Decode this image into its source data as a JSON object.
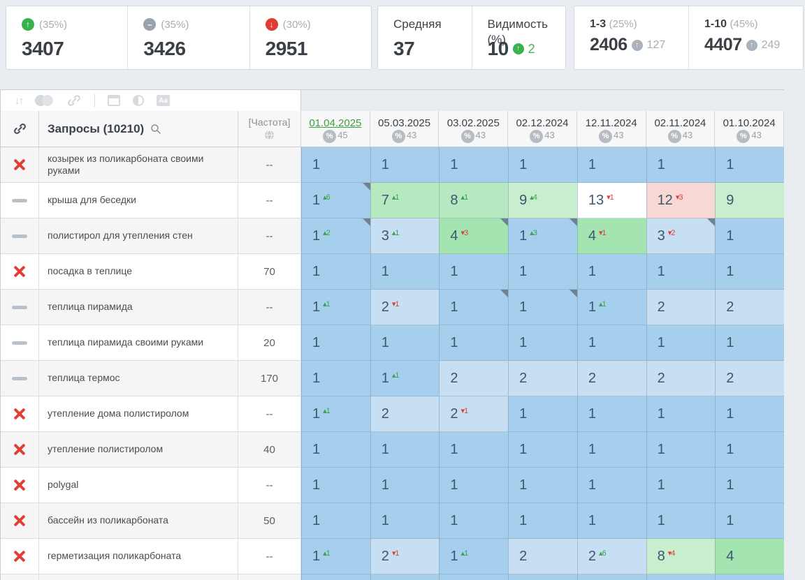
{
  "stats": {
    "summary_cards": [
      {
        "icon": "up-circle",
        "icon_color": "#37b24d",
        "label": "(35%)",
        "value": "3407"
      },
      {
        "icon": "minus-circle",
        "icon_color": "#9aa3ad",
        "label": "(35%)",
        "value": "3426"
      },
      {
        "icon": "down-circle",
        "icon_color": "#e03c31",
        "label": "(30%)",
        "value": "2951"
      }
    ],
    "average": {
      "label": "Средняя",
      "value": "37"
    },
    "visibility": {
      "label": "Видимость (%)",
      "value": "10",
      "delta": "2"
    },
    "range_cards": [
      {
        "label": "1-3",
        "pct": "(25%)",
        "value": "2406",
        "delta": "127"
      },
      {
        "label": "1-10",
        "pct": "(45%)",
        "value": "4407",
        "delta": "249"
      }
    ]
  },
  "toolbar": {
    "icons": [
      "sort-icon",
      "circles-icon",
      "link-icon",
      "calendar-icon",
      "contrast-icon",
      "font-aa-icon"
    ]
  },
  "table": {
    "queries_header": "Запросы (10210)",
    "frequency_header": "[Частота]",
    "date_columns": [
      {
        "date": "01.04.2025",
        "visibility": "45",
        "selected": true
      },
      {
        "date": "05.03.2025",
        "visibility": "43",
        "selected": false
      },
      {
        "date": "03.02.2025",
        "visibility": "43",
        "selected": false
      },
      {
        "date": "02.12.2024",
        "visibility": "43",
        "selected": false
      },
      {
        "date": "12.11.2024",
        "visibility": "43",
        "selected": false
      },
      {
        "date": "02.11.2024",
        "visibility": "43",
        "selected": false
      },
      {
        "date": "01.10.2024",
        "visibility": "43",
        "selected": false
      }
    ],
    "cell_colors": {
      "b1": "#a5cfec",
      "b2": "#c6dff3",
      "g1": "#a4e4b1",
      "g2": "#b7e9c0",
      "g3": "#c9edcf",
      "w": "#ffffff",
      "r": "#f8d8d5"
    },
    "rows": [
      {
        "marker": "x",
        "query": "козырек из поликарбоната своими руками",
        "frequency": "--",
        "cells": [
          {
            "v": "1",
            "bg": "b1"
          },
          {
            "v": "1",
            "bg": "b1"
          },
          {
            "v": "1",
            "bg": "b1"
          },
          {
            "v": "1",
            "bg": "b1"
          },
          {
            "v": "1",
            "bg": "b1"
          },
          {
            "v": "1",
            "bg": "b1"
          },
          {
            "v": "1",
            "bg": "b1"
          }
        ]
      },
      {
        "marker": "dash",
        "query": "крыша для беседки",
        "frequency": "--",
        "cells": [
          {
            "v": "1",
            "d": "+6",
            "bg": "b1",
            "note": true
          },
          {
            "v": "7",
            "d": "+1",
            "bg": "g2"
          },
          {
            "v": "8",
            "d": "+1",
            "bg": "g2"
          },
          {
            "v": "9",
            "d": "+4",
            "bg": "g3"
          },
          {
            "v": "13",
            "d": "-1",
            "bg": "w"
          },
          {
            "v": "12",
            "d": "-3",
            "bg": "r"
          },
          {
            "v": "9",
            "bg": "g3"
          }
        ]
      },
      {
        "marker": "dash",
        "query": "полистирол для утепления стен",
        "frequency": "--",
        "cells": [
          {
            "v": "1",
            "d": "+2",
            "bg": "b1",
            "note": true
          },
          {
            "v": "3",
            "d": "+1",
            "bg": "b2"
          },
          {
            "v": "4",
            "d": "-3",
            "bg": "g1",
            "note": true
          },
          {
            "v": "1",
            "d": "+3",
            "bg": "b1",
            "note": true
          },
          {
            "v": "4",
            "d": "-1",
            "bg": "g1"
          },
          {
            "v": "3",
            "d": "-2",
            "bg": "b2",
            "note": true
          },
          {
            "v": "1",
            "bg": "b1"
          }
        ]
      },
      {
        "marker": "x",
        "query": "посадка в теплице",
        "frequency": "70",
        "cells": [
          {
            "v": "1",
            "bg": "b1"
          },
          {
            "v": "1",
            "bg": "b1"
          },
          {
            "v": "1",
            "bg": "b1"
          },
          {
            "v": "1",
            "bg": "b1"
          },
          {
            "v": "1",
            "bg": "b1"
          },
          {
            "v": "1",
            "bg": "b1"
          },
          {
            "v": "1",
            "bg": "b1"
          }
        ]
      },
      {
        "marker": "dash",
        "query": "теплица пирамида",
        "frequency": "--",
        "cells": [
          {
            "v": "1",
            "d": "+1",
            "bg": "b1"
          },
          {
            "v": "2",
            "d": "-1",
            "bg": "b2"
          },
          {
            "v": "1",
            "bg": "b1",
            "note": true
          },
          {
            "v": "1",
            "bg": "b1",
            "note": true
          },
          {
            "v": "1",
            "d": "+1",
            "bg": "b1"
          },
          {
            "v": "2",
            "bg": "b2"
          },
          {
            "v": "2",
            "bg": "b2"
          }
        ]
      },
      {
        "marker": "dash",
        "query": "теплица пирамида своими руками",
        "frequency": "20",
        "cells": [
          {
            "v": "1",
            "bg": "b1"
          },
          {
            "v": "1",
            "bg": "b1"
          },
          {
            "v": "1",
            "bg": "b1"
          },
          {
            "v": "1",
            "bg": "b1"
          },
          {
            "v": "1",
            "bg": "b1"
          },
          {
            "v": "1",
            "bg": "b1"
          },
          {
            "v": "1",
            "bg": "b1"
          }
        ]
      },
      {
        "marker": "dash",
        "query": "теплица термос",
        "frequency": "170",
        "cells": [
          {
            "v": "1",
            "bg": "b1"
          },
          {
            "v": "1",
            "d": "+1",
            "bg": "b1"
          },
          {
            "v": "2",
            "bg": "b2"
          },
          {
            "v": "2",
            "bg": "b2"
          },
          {
            "v": "2",
            "bg": "b2"
          },
          {
            "v": "2",
            "bg": "b2"
          },
          {
            "v": "2",
            "bg": "b2"
          }
        ]
      },
      {
        "marker": "x",
        "query": "утепление дома полистиролом",
        "frequency": "--",
        "cells": [
          {
            "v": "1",
            "d": "+1",
            "bg": "b1"
          },
          {
            "v": "2",
            "bg": "b2"
          },
          {
            "v": "2",
            "d": "-1",
            "bg": "b2"
          },
          {
            "v": "1",
            "bg": "b1"
          },
          {
            "v": "1",
            "bg": "b1"
          },
          {
            "v": "1",
            "bg": "b1"
          },
          {
            "v": "1",
            "bg": "b1"
          }
        ]
      },
      {
        "marker": "x",
        "query": "утепление полистиролом",
        "frequency": "40",
        "cells": [
          {
            "v": "1",
            "bg": "b1"
          },
          {
            "v": "1",
            "bg": "b1"
          },
          {
            "v": "1",
            "bg": "b1"
          },
          {
            "v": "1",
            "bg": "b1"
          },
          {
            "v": "1",
            "bg": "b1"
          },
          {
            "v": "1",
            "bg": "b1"
          },
          {
            "v": "1",
            "bg": "b1"
          }
        ]
      },
      {
        "marker": "x",
        "query": "polygal",
        "frequency": "--",
        "cells": [
          {
            "v": "1",
            "bg": "b1"
          },
          {
            "v": "1",
            "bg": "b1"
          },
          {
            "v": "1",
            "bg": "b1"
          },
          {
            "v": "1",
            "bg": "b1"
          },
          {
            "v": "1",
            "bg": "b1"
          },
          {
            "v": "1",
            "bg": "b1"
          },
          {
            "v": "1",
            "bg": "b1"
          }
        ]
      },
      {
        "marker": "x",
        "query": "бассейн из поликарбоната",
        "frequency": "50",
        "cells": [
          {
            "v": "1",
            "bg": "b1"
          },
          {
            "v": "1",
            "bg": "b1"
          },
          {
            "v": "1",
            "bg": "b1"
          },
          {
            "v": "1",
            "bg": "b1"
          },
          {
            "v": "1",
            "bg": "b1"
          },
          {
            "v": "1",
            "bg": "b1"
          },
          {
            "v": "1",
            "bg": "b1"
          }
        ]
      },
      {
        "marker": "x",
        "query": "герметизация поликарбоната",
        "frequency": "--",
        "cells": [
          {
            "v": "1",
            "d": "+1",
            "bg": "b1"
          },
          {
            "v": "2",
            "d": "-1",
            "bg": "b2"
          },
          {
            "v": "1",
            "d": "+1",
            "bg": "b1"
          },
          {
            "v": "2",
            "bg": "b2"
          },
          {
            "v": "2",
            "d": "+6",
            "bg": "b2"
          },
          {
            "v": "8",
            "d": "-4",
            "bg": "g3"
          },
          {
            "v": "4",
            "bg": "g1"
          }
        ]
      }
    ]
  }
}
